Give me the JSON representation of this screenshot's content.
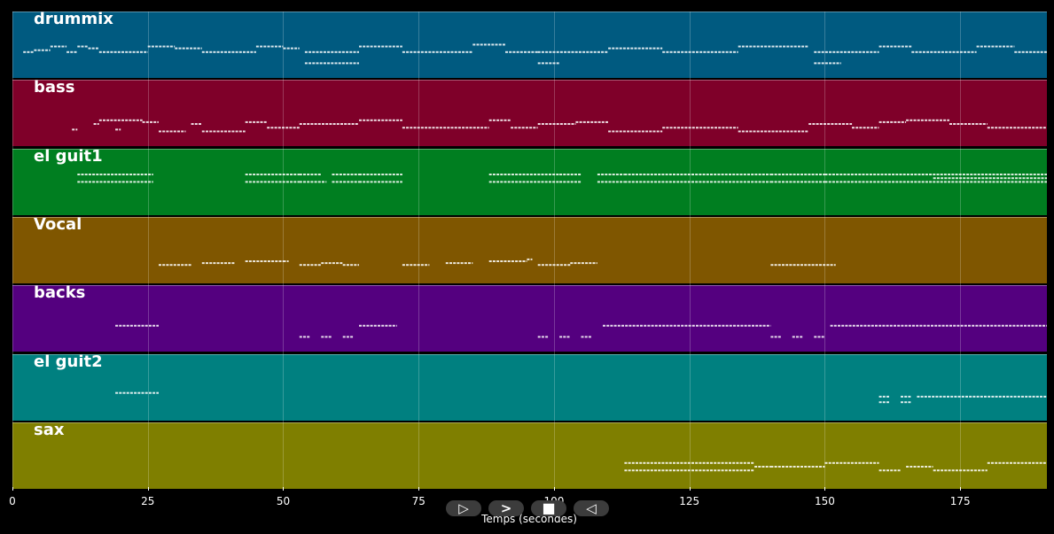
{
  "chart_data": {
    "type": "piano-roll",
    "xlabel": "Temps (secondes)",
    "xlim": [
      0,
      191
    ],
    "xticks": [
      0,
      25,
      50,
      75,
      100,
      125,
      150,
      175
    ],
    "tracks": [
      {
        "name": "drummix",
        "color": "#005a80",
        "notes": [
          [
            2,
            4,
            62
          ],
          [
            4,
            7,
            63
          ],
          [
            7,
            10,
            65
          ],
          [
            10,
            12,
            62
          ],
          [
            12,
            14,
            65
          ],
          [
            14,
            16,
            64
          ],
          [
            16,
            25,
            62
          ],
          [
            25,
            30,
            65
          ],
          [
            30,
            35,
            64
          ],
          [
            35,
            45,
            62
          ],
          [
            45,
            50,
            65
          ],
          [
            50,
            53,
            64
          ],
          [
            54,
            64,
            56
          ],
          [
            54,
            64,
            62
          ],
          [
            64,
            72,
            65
          ],
          [
            72,
            85,
            62
          ],
          [
            85,
            91,
            66
          ],
          [
            91,
            97,
            62
          ],
          [
            97,
            101,
            56
          ],
          [
            97,
            110,
            62
          ],
          [
            110,
            120,
            64
          ],
          [
            120,
            134,
            62
          ],
          [
            134,
            147,
            65
          ],
          [
            148,
            153,
            56
          ],
          [
            148,
            160,
            62
          ],
          [
            160,
            166,
            65
          ],
          [
            166,
            178,
            62
          ],
          [
            178,
            185,
            65
          ],
          [
            185,
            191,
            62
          ]
        ]
      },
      {
        "name": "bass",
        "color": "#7f0029",
        "notes": [
          [
            11,
            12,
            57
          ],
          [
            15,
            16,
            60
          ],
          [
            16,
            24,
            62
          ],
          [
            19,
            20,
            57
          ],
          [
            24,
            27,
            61
          ],
          [
            27,
            32,
            56
          ],
          [
            33,
            35,
            60
          ],
          [
            35,
            43,
            56
          ],
          [
            43,
            47,
            61
          ],
          [
            47,
            53,
            58
          ],
          [
            53,
            64,
            60
          ],
          [
            64,
            72,
            62
          ],
          [
            72,
            88,
            58
          ],
          [
            88,
            92,
            62
          ],
          [
            92,
            97,
            58
          ],
          [
            97,
            104,
            60
          ],
          [
            104,
            110,
            61
          ],
          [
            110,
            120,
            56
          ],
          [
            120,
            134,
            58
          ],
          [
            134,
            147,
            56
          ],
          [
            147,
            155,
            60
          ],
          [
            155,
            160,
            58
          ],
          [
            160,
            165,
            61
          ],
          [
            165,
            173,
            62
          ],
          [
            173,
            180,
            60
          ],
          [
            180,
            191,
            58
          ]
        ]
      },
      {
        "name": "el guit1",
        "color": "#007e20",
        "notes": [
          [
            12,
            26,
            70
          ],
          [
            12,
            26,
            66
          ],
          [
            43,
            53,
            70
          ],
          [
            43,
            53,
            66
          ],
          [
            53,
            57,
            70
          ],
          [
            53,
            58,
            66
          ],
          [
            59,
            64,
            70
          ],
          [
            59,
            64,
            66
          ],
          [
            64,
            72,
            70
          ],
          [
            64,
            72,
            66
          ],
          [
            88,
            101,
            70
          ],
          [
            88,
            101,
            66
          ],
          [
            101,
            105,
            70
          ],
          [
            101,
            105,
            66
          ],
          [
            108,
            113,
            70
          ],
          [
            108,
            113,
            66
          ],
          [
            113,
            140,
            70
          ],
          [
            113,
            140,
            66
          ],
          [
            140,
            150,
            70
          ],
          [
            140,
            150,
            66
          ],
          [
            150,
            191,
            70
          ],
          [
            150,
            191,
            66
          ],
          [
            170,
            191,
            68
          ]
        ]
      },
      {
        "name": "Vocal",
        "color": "#7f5600",
        "notes": [
          [
            27,
            33,
            58
          ],
          [
            35,
            41,
            59
          ],
          [
            43,
            50,
            60
          ],
          [
            50,
            51,
            60
          ],
          [
            53,
            57,
            58
          ],
          [
            57,
            61,
            59
          ],
          [
            61,
            64,
            58
          ],
          [
            72,
            77,
            58
          ],
          [
            80,
            85,
            59
          ],
          [
            88,
            95,
            60
          ],
          [
            95,
            96,
            61
          ],
          [
            97,
            103,
            58
          ],
          [
            103,
            108,
            59
          ],
          [
            140,
            152,
            58
          ]
        ]
      },
      {
        "name": "backs",
        "color": "#54007f",
        "notes": [
          [
            19,
            27,
            62
          ],
          [
            53,
            55,
            56
          ],
          [
            57,
            59,
            56
          ],
          [
            61,
            63,
            56
          ],
          [
            64,
            71,
            62
          ],
          [
            97,
            99,
            56
          ],
          [
            101,
            103,
            56
          ],
          [
            105,
            107,
            56
          ],
          [
            109,
            140,
            62
          ],
          [
            140,
            142,
            56
          ],
          [
            144,
            146,
            56
          ],
          [
            148,
            150,
            56
          ],
          [
            151,
            191,
            62
          ]
        ]
      },
      {
        "name": "el guit2",
        "color": "#008080",
        "notes": [
          [
            19,
            27,
            63
          ],
          [
            160,
            162,
            58
          ],
          [
            160,
            162,
            61
          ],
          [
            164,
            166,
            58
          ],
          [
            164,
            166,
            61
          ],
          [
            167,
            191,
            61
          ]
        ]
      },
      {
        "name": "sax",
        "color": "#7f7f00",
        "notes": [
          [
            113,
            137,
            62
          ],
          [
            113,
            137,
            58
          ],
          [
            137,
            140,
            60
          ],
          [
            140,
            150,
            60
          ],
          [
            150,
            160,
            62
          ],
          [
            160,
            164,
            58
          ],
          [
            165,
            170,
            60
          ],
          [
            170,
            180,
            58
          ],
          [
            180,
            191,
            62
          ]
        ]
      }
    ]
  },
  "controls": [
    {
      "name": "play-button",
      "icon": "play-icon",
      "glyph": "▷"
    },
    {
      "name": "next-button",
      "icon": "chevron-right-icon",
      "glyph": ">"
    },
    {
      "name": "stop-button",
      "icon": "stop-icon",
      "glyph": "■"
    },
    {
      "name": "reverse-button",
      "icon": "reverse-icon",
      "glyph": "◁"
    }
  ]
}
